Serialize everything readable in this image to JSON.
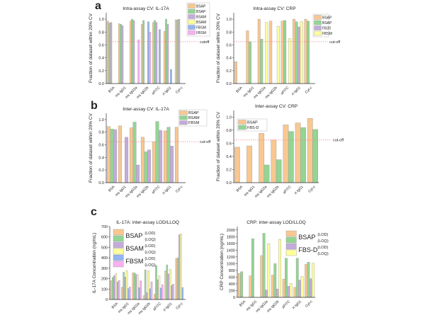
{
  "panels": [
    "a",
    "b",
    "c"
  ],
  "colors": {
    "BSAP_orange": "#f9c790",
    "green": "#93d593",
    "purple": "#c3acd9",
    "yellow": "#ffff9c",
    "blue": "#94b4f2",
    "pink": "#f9b0f2",
    "cutoff": "#e88"
  },
  "chart_data": [
    {
      "type": "bar",
      "title": "Intra-assay CV: IL-17A",
      "ylabel": "Fraction of dataset within 20% CV",
      "xlabel": "",
      "ylim": [
        0,
        1.1
      ],
      "yticks": [
        "0.0",
        "0.2",
        "0.4",
        "0.6",
        "0.8",
        "1.0"
      ],
      "ytick_values": [
        0,
        0.2,
        0.4,
        0.6,
        0.8,
        1.0
      ],
      "categories": [
        "BSA",
        "ms IgG1",
        "ms IgG2a",
        "ms IgG2b",
        "aFITC",
        "rt IgG1",
        "Cyt-c"
      ],
      "cutoff": {
        "value": 0.65,
        "label": "cutoff"
      },
      "legend_placement": "top-right outside",
      "series": [
        {
          "name": "BSAP",
          "color": "#f9c790",
          "values": [
            0.97,
            0.93,
            0.97,
            0.92,
            0.95,
            0.81,
            0.99
          ]
        },
        {
          "name": "BSAP",
          "color": "#93d593",
          "values": [
            0.94,
            0.92,
            1.0,
            0.98,
            0.98,
            1.0,
            0.99
          ]
        },
        {
          "name": "BSAM",
          "color": "#c3acd9",
          "values": [
            0.95,
            0.9,
            0.98,
            null,
            0.95,
            0.92,
            1.0
          ]
        },
        {
          "name": "BSAM",
          "color": "#ffff9c",
          "values": [
            null,
            null,
            null,
            null,
            null,
            null,
            null
          ]
        },
        {
          "name": "FBSM",
          "color": "#94b4f2",
          "values": [
            null,
            null,
            null,
            0.96,
            0.84,
            0.22,
            null
          ]
        },
        {
          "name": "FBSM",
          "color": "#f9b0f2",
          "values": [
            null,
            null,
            0.68,
            0.8,
            null,
            null,
            null
          ]
        }
      ]
    },
    {
      "type": "bar",
      "title": "Intra-assay CV: CRP",
      "ylabel": "Fraction of dataset within 20% CV",
      "xlabel": "",
      "ylim": [
        0,
        1.1
      ],
      "yticks": [
        "0.0",
        "0.2",
        "0.4",
        "0.6",
        "0.8",
        "1.0"
      ],
      "ytick_values": [
        0,
        0.2,
        0.4,
        0.6,
        0.8,
        1.0
      ],
      "categories": [
        "BSA",
        "ms IgG1",
        "ms IgG2a",
        "ms IgG2b",
        "aFITC",
        "rt IgG1",
        "Cyt-c"
      ],
      "cutoff": {
        "value": 0.65,
        "label": "cut-off"
      },
      "legend_placement": "top-right outside",
      "series": [
        {
          "name": "BSAP",
          "color": "#f9c790",
          "values": [
            0.34,
            0.82,
            1.0,
            0.97,
            0.97,
            1.0,
            1.0
          ]
        },
        {
          "name": "BSAP",
          "color": "#93d593",
          "values": [
            null,
            0.65,
            0.69,
            null,
            0.98,
            0.96,
            0.97
          ]
        },
        {
          "name": "FB20",
          "color": "#c3acd9",
          "values": [
            null,
            null,
            null,
            null,
            null,
            0.88,
            null
          ]
        },
        {
          "name": "FBSM",
          "color": "#ffff9c",
          "values": [
            null,
            null,
            0.95,
            0.89,
            0.7,
            0.96,
            null
          ]
        }
      ]
    },
    {
      "type": "bar",
      "title": "Inter-assay CV: IL-17A",
      "ylabel": "Fraction of dataset within 20% CV",
      "xlabel": "",
      "ylim": [
        0,
        1.1
      ],
      "yticks": [
        "0.0",
        "0.2",
        "0.4",
        "0.6",
        "0.8",
        "1.0"
      ],
      "ytick_values": [
        0,
        0.2,
        0.4,
        0.6,
        0.8,
        1.0
      ],
      "categories": [
        "BSA",
        "ms IgG1",
        "ms IgG2a",
        "ms IgG2b",
        "aFITC",
        "rt IgG1",
        "Cyt-c"
      ],
      "cutoff": {
        "value": 0.65,
        "label": "cut-off"
      },
      "legend_placement": "top-right",
      "series": [
        {
          "name": "BSAP",
          "color": "#f9c790",
          "values": [
            0.89,
            0.9,
            0.87,
            0.72,
            0.65,
            0.82,
            0.88
          ]
        },
        {
          "name": "BSAM",
          "color": "#93d593",
          "values": [
            0.85,
            null,
            0.96,
            0.49,
            0.97,
            0.88,
            null
          ]
        },
        {
          "name": "FBSM",
          "color": "#c3acd9",
          "values": [
            0.84,
            0.72,
            0.28,
            0.52,
            0.83,
            0.58,
            null
          ]
        }
      ]
    },
    {
      "type": "bar",
      "title": "Inter-assay CV: CRP",
      "ylabel": "Fraction of dataset within 20% CV",
      "xlabel": "",
      "ylim": [
        0,
        1.1
      ],
      "yticks": [
        "0.0",
        "0.2",
        "0.4",
        "0.6",
        "0.8",
        "1.0"
      ],
      "ytick_values": [
        0,
        0.2,
        0.4,
        0.6,
        0.8,
        1.0
      ],
      "categories": [
        "BSA",
        "ms IgG1",
        "ms IgG2a",
        "ms IgG2b",
        "aFITC",
        "rt IgG1",
        "Cyt-c"
      ],
      "cutoff": {
        "value": 0.65,
        "label": "cut-off"
      },
      "legend_placement": "top-left",
      "series": [
        {
          "name": "BSAP",
          "color": "#f9c790",
          "values": [
            0.54,
            0.56,
            0.75,
            0.65,
            0.88,
            0.91,
            0.98
          ]
        },
        {
          "name": "FBS-D",
          "color": "#93d593",
          "values": [
            null,
            null,
            0.27,
            0.35,
            0.78,
            0.84,
            0.81
          ]
        }
      ]
    },
    {
      "type": "bar",
      "title": "IL-17A: inter-assay LOD/LLOQ",
      "ylabel": "IL-17A Concentration (ng/mL)",
      "xlabel": "",
      "ylim": [
        0,
        700
      ],
      "yticks": [
        "0",
        "100",
        "200",
        "300",
        "400",
        "500",
        "600",
        "700"
      ],
      "ytick_values": [
        0,
        100,
        200,
        300,
        400,
        500,
        600,
        700
      ],
      "categories": [
        "BSA",
        "ms IgG1",
        "ms IgG2a",
        "ms IgG2b",
        "aFITC",
        "rt IgG1",
        "Cyt-c"
      ],
      "legend_placement": "top-left",
      "legend_groups": [
        {
          "name": "BSAP",
          "sub": [
            "(LOD)",
            "(LOQ)"
          ]
        },
        {
          "name": "BSAM",
          "sub": [
            "(LOD)",
            "(LOQ)"
          ]
        },
        {
          "name": "FBSM",
          "sub": [
            "(LOD)",
            "(LOQ)"
          ]
        }
      ],
      "series": [
        {
          "name": "BSAP (LOD)",
          "color": "#f9c790",
          "values": [
            180,
            118,
            255,
            37,
            52,
            275,
            393
          ]
        },
        {
          "name": "BSAP (LOQ)",
          "color": "#93d593",
          "values": [
            213,
            262,
            255,
            285,
            325,
            332,
            400
          ]
        },
        {
          "name": "BSAM (LOD)",
          "color": "#c3acd9",
          "values": [
            230,
            215,
            240,
            65,
            190,
            245,
            622
          ]
        },
        {
          "name": "BSAM (LOQ)",
          "color": "#ffff9c",
          "values": [
            248,
            277,
            240,
            277,
            228,
            290,
            630
          ]
        },
        {
          "name": "FBSM (LOD)",
          "color": "#94b4f2",
          "values": [
            168,
            105,
            113,
            103,
            110,
            133,
            115
          ]
        },
        {
          "name": "FBSM (LOQ)",
          "color": "#f9b0f2",
          "values": [
            183,
            120,
            180,
            170,
            142,
            148,
            null
          ]
        }
      ]
    },
    {
      "type": "bar",
      "title": "CRP: inter-assay LOD/LLOQ",
      "ylabel": "CRP Concentration (ng/mL)",
      "xlabel": "",
      "ylim": [
        0,
        2100
      ],
      "yticks": [
        "0",
        "200",
        "400",
        "600",
        "800",
        "1000",
        "1200",
        "1400",
        "1600",
        "1800",
        "2000"
      ],
      "ytick_values": [
        0,
        200,
        400,
        600,
        800,
        1000,
        1200,
        1400,
        1600,
        1800,
        2000
      ],
      "categories": [
        "BSA",
        "ms IgG1",
        "ms IgG2a",
        "ms IgG2b",
        "aFITC",
        "rt IgG1",
        "Cyt-c"
      ],
      "legend_placement": "top-right",
      "legend_groups": [
        {
          "name": "BSAP",
          "sub": [
            "(LOD)",
            "(LOQ)"
          ]
        },
        {
          "name": "FBS-D",
          "sub": [
            "(LOD)",
            "(LOQ)"
          ]
        }
      ],
      "series": [
        {
          "name": "BSAP (LOD)",
          "color": "#f9c790",
          "values": [
            710,
            640,
            1240,
            660,
            540,
            300,
            980
          ]
        },
        {
          "name": "BSAP (LOQ)",
          "color": "#93d593",
          "values": [
            760,
            1740,
            1900,
            1000,
            1160,
            1160,
            1040
          ]
        },
        {
          "name": "FBS-D (LOD)",
          "color": "#c3acd9",
          "values": [
            null,
            null,
            220,
            250,
            330,
            510,
            550
          ]
        },
        {
          "name": "FBS-D (LOQ)",
          "color": "#ffff9c",
          "values": [
            null,
            null,
            1590,
            1720,
            410,
            620,
            1010
          ]
        }
      ]
    }
  ]
}
